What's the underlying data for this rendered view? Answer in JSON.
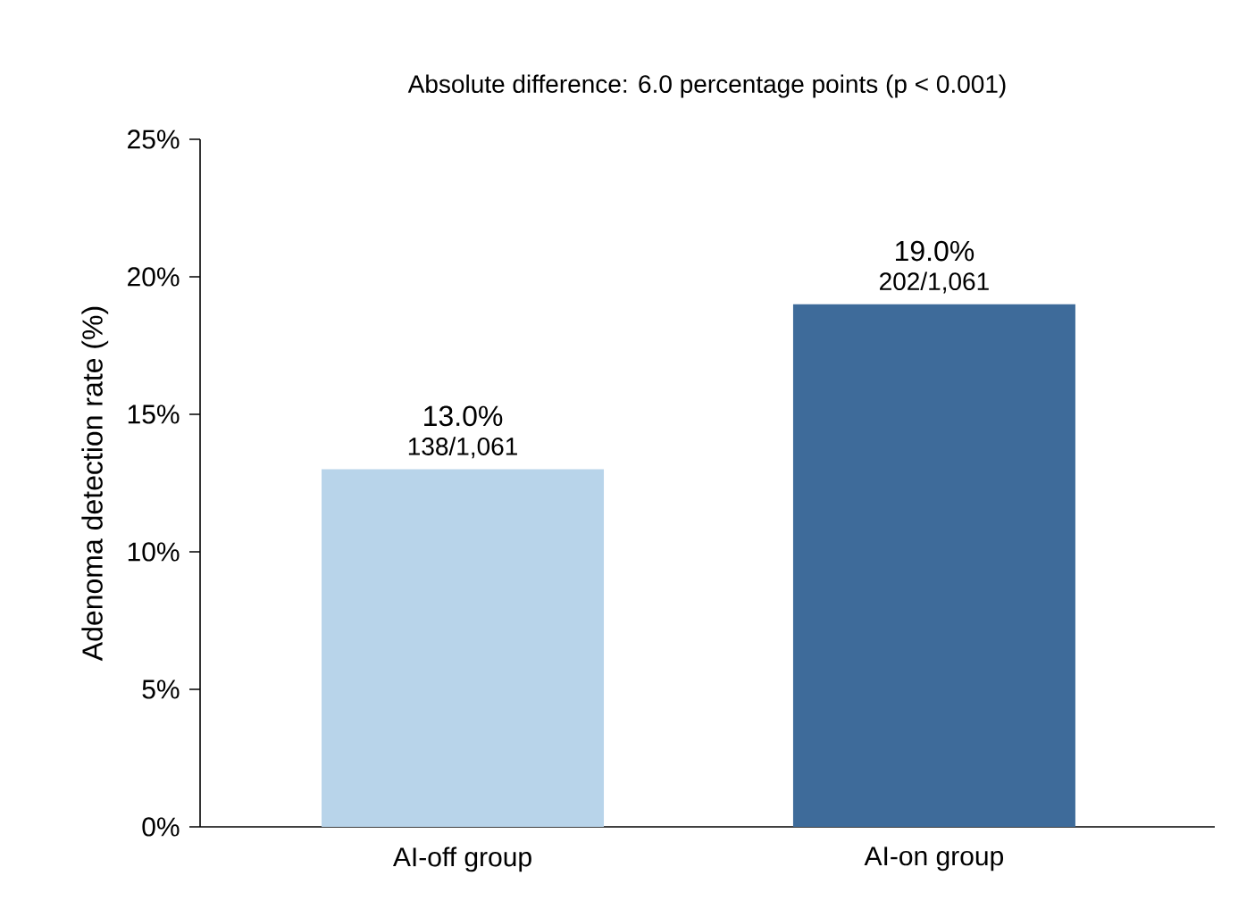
{
  "chart_data": {
    "type": "bar",
    "title": "Absolute difference: 6.0 percentage points (p < 0.001)",
    "ylabel": "Adenoma detection rate (%)",
    "categories": [
      "AI-off group",
      "AI-on group"
    ],
    "values": [
      13.0,
      19.0
    ],
    "colors": [
      "#b8d4ea",
      "#3e6b9a"
    ],
    "value_labels": [
      "13.0%",
      "19.0%"
    ],
    "annotations": [
      {
        "text": "138/1,061",
        "x": "AI-off group",
        "y": 13.0
      },
      {
        "text": "202/1,061",
        "x": "AI-on group",
        "y": 19.0
      }
    ],
    "ylim": [
      0,
      25
    ],
    "yticks": [
      {
        "value": 0,
        "label": "0%"
      },
      {
        "value": 5,
        "label": "5%"
      },
      {
        "value": 10,
        "label": "10%"
      },
      {
        "value": 15,
        "label": "15%"
      },
      {
        "value": 20,
        "label": "20%"
      },
      {
        "value": 25,
        "label": "25%"
      }
    ],
    "grid": false
  }
}
